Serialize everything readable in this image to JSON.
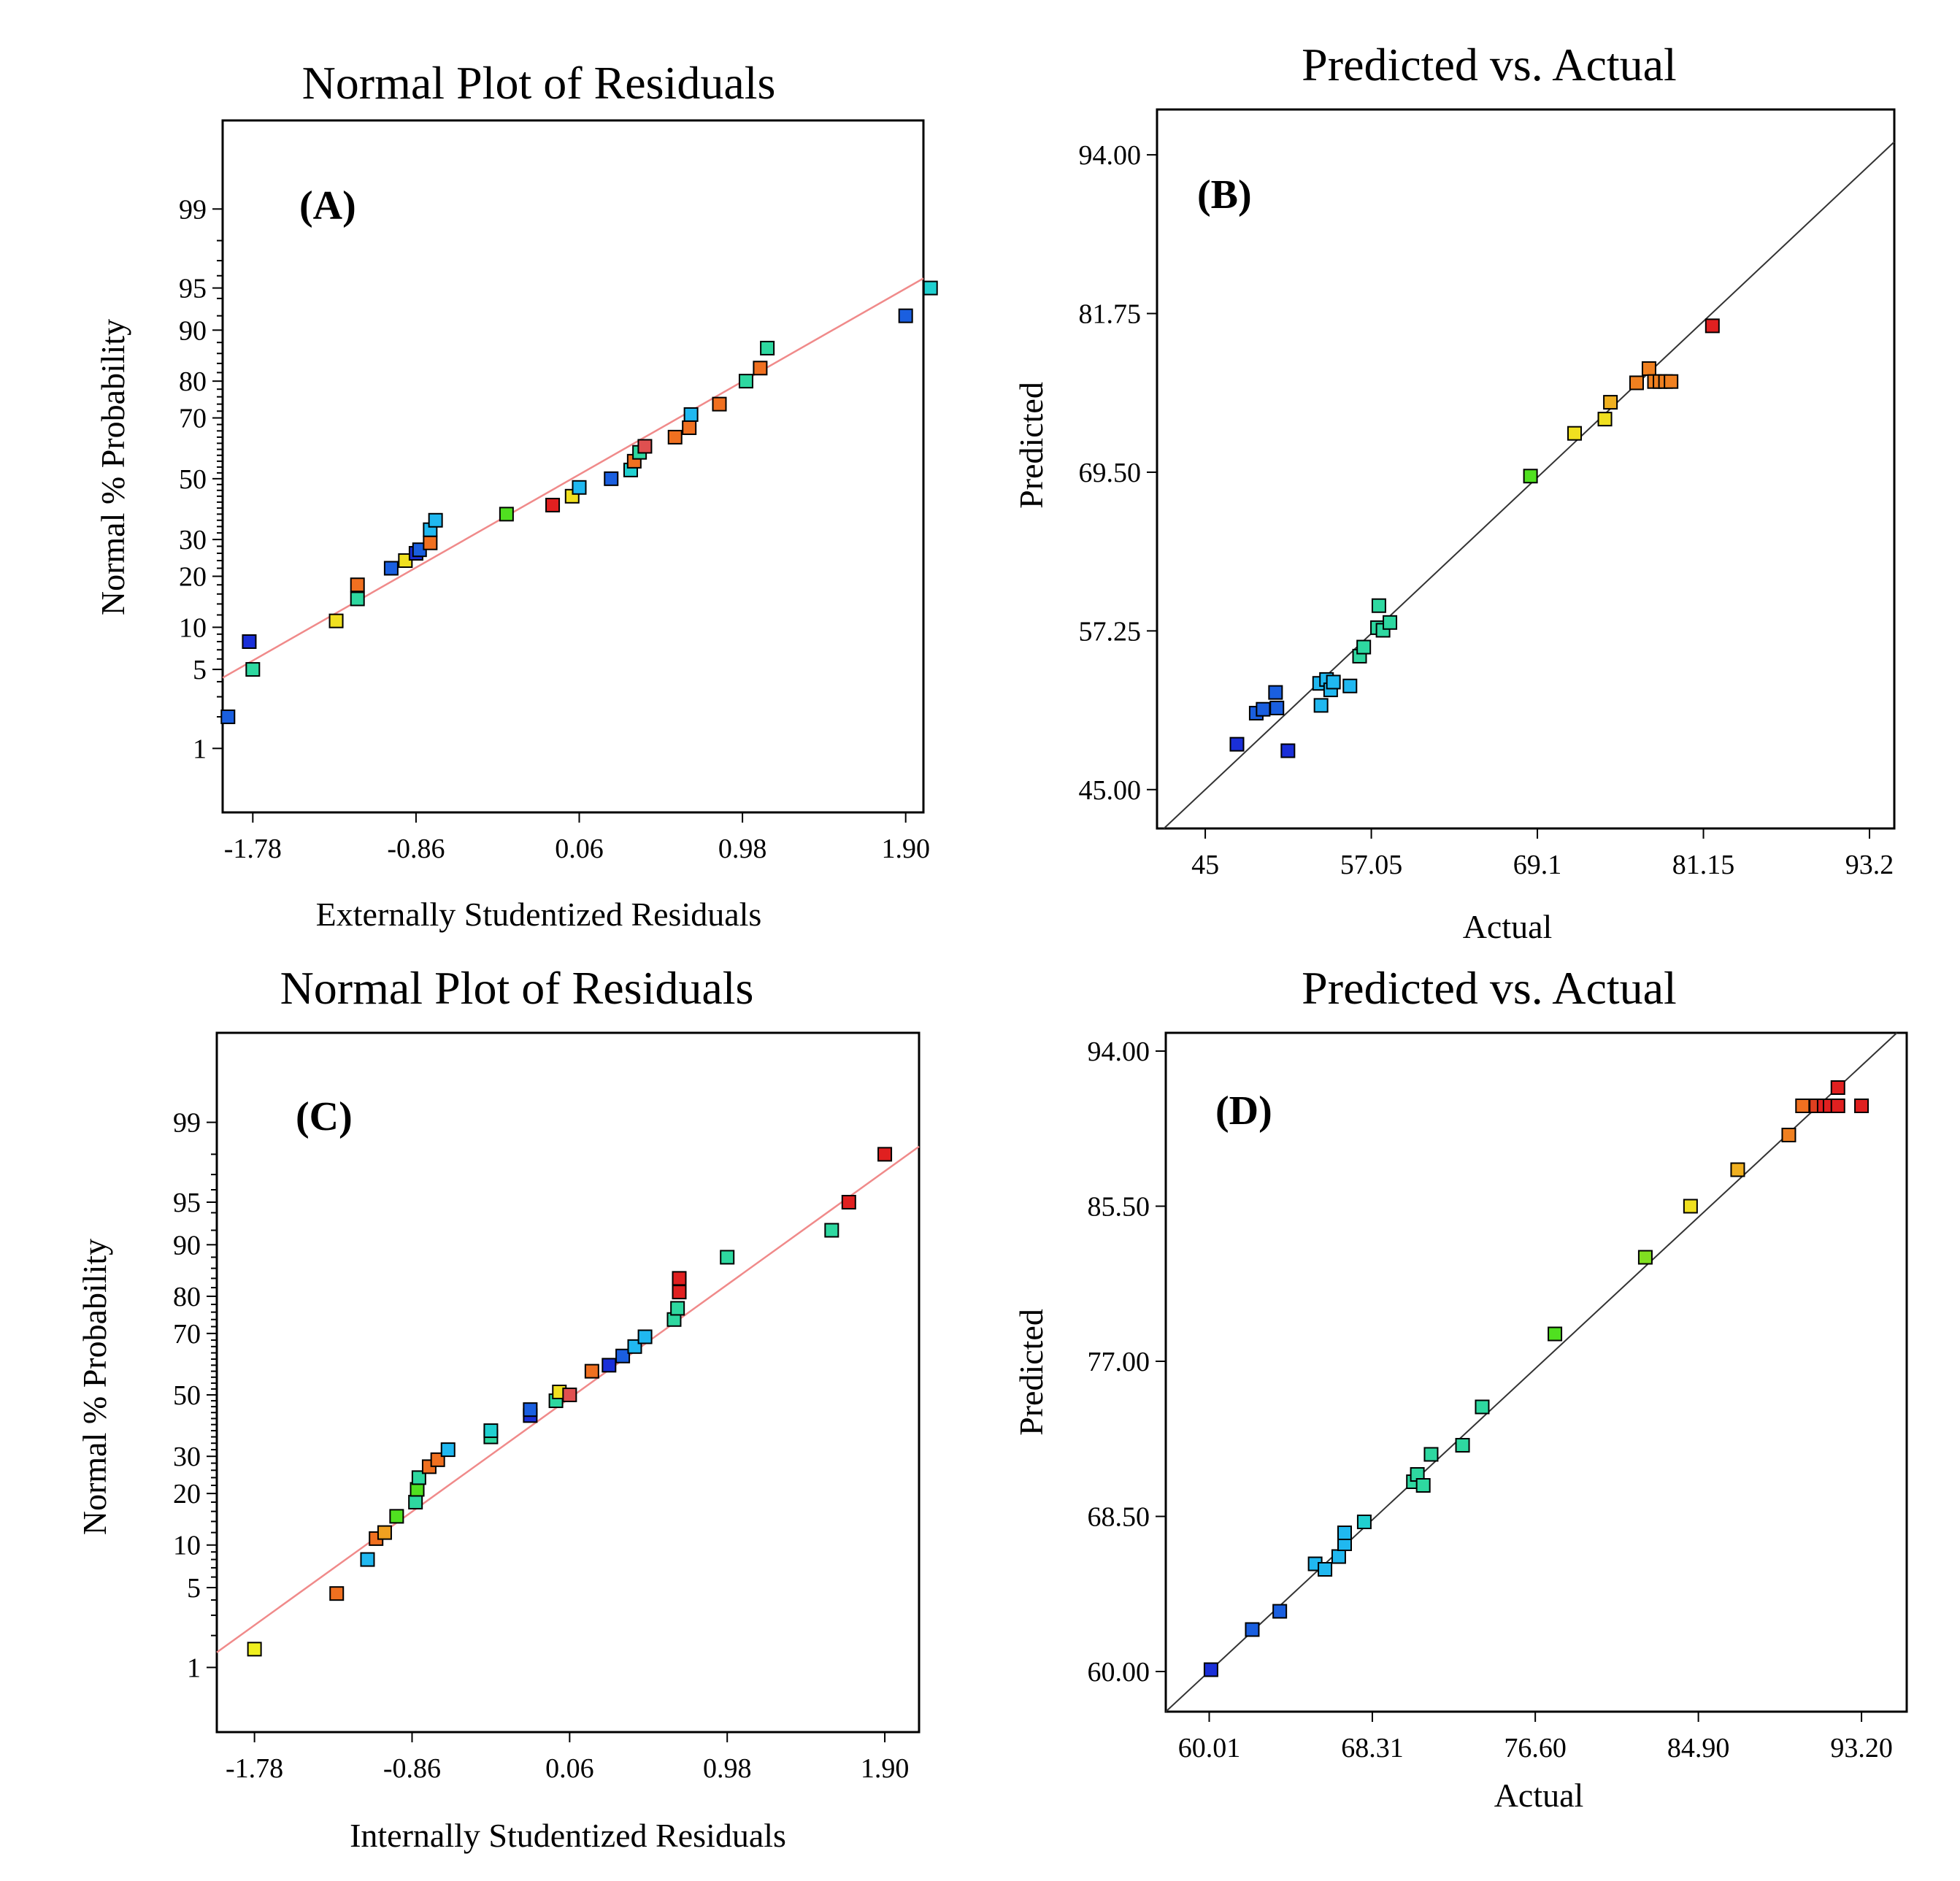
{
  "chart_data": [
    {
      "id": "A",
      "type": "scatter",
      "subtype": "normal-probability",
      "title": "Normal Plot of Residuals",
      "panel_label": "(A)",
      "xlabel": "Externally Studentized Residuals",
      "ylabel": "Normal % Probability",
      "xlim": [
        -1.95,
        2.0
      ],
      "ylim": [
        0.2,
        99.9
      ],
      "xticks": [
        "-1.78",
        "-0.86",
        "0.06",
        "0.98",
        "1.90"
      ],
      "yticks": [
        "1",
        "5",
        "10",
        "20",
        "30",
        "50",
        "70",
        "80",
        "90",
        "95",
        "99"
      ],
      "fit_line": {
        "x": [
          -1.95,
          2.0
        ],
        "y": [
          4.3,
          95.8
        ],
        "color": "#f08a8a"
      },
      "points": {
        "x": [
          -1.92,
          -1.78,
          -1.8,
          -1.31,
          -1.19,
          -1.19,
          -1.0,
          -0.92,
          -0.86,
          -0.84,
          -0.78,
          -0.78,
          -0.75,
          -0.35,
          -0.09,
          0.02,
          0.06,
          0.24,
          0.35,
          0.37,
          0.4,
          0.43,
          0.6,
          0.68,
          0.69,
          0.85,
          1.0,
          1.08,
          1.12,
          1.9,
          2.04
        ],
        "y": [
          2.0,
          5.0,
          8.0,
          11.0,
          15.0,
          18.0,
          22.0,
          24.0,
          26.0,
          27.0,
          29.0,
          33.0,
          36.0,
          38.0,
          41.0,
          44.0,
          47.0,
          50.0,
          53.0,
          56.0,
          59.0,
          61.0,
          64.0,
          67.0,
          71.0,
          74.0,
          80.0,
          83.0,
          87.0,
          92.0,
          95.0
        ],
        "colors": [
          "#1a5fe0",
          "#2ed8a0",
          "#1a2fd8",
          "#f0e020",
          "#2ed8a0",
          "#f07020",
          "#1a5fe0",
          "#f0e020",
          "#1a2fd8",
          "#1a5fe0",
          "#f07020",
          "#20b8f0",
          "#20b8f0",
          "#50e020",
          "#e02020",
          "#f0e020",
          "#20b8f0",
          "#1a5fe0",
          "#20d0d0",
          "#f07020",
          "#2ed8a0",
          "#e05050",
          "#f07020",
          "#f07020",
          "#20b8f0",
          "#f07020",
          "#2ed8a0",
          "#f07020",
          "#2ed8a0",
          "#1a5fe0",
          "#20d0d0"
        ]
      }
    },
    {
      "id": "B",
      "type": "scatter",
      "subtype": "predicted-vs-actual",
      "title": "Predicted vs. Actual",
      "panel_label": "(B)",
      "xlabel": "Actual",
      "ylabel": "Predicted",
      "xlim": [
        41.5,
        95.0
      ],
      "ylim": [
        42.0,
        97.5
      ],
      "xticks": [
        "45",
        "57.05",
        "69.1",
        "81.15",
        "93.2"
      ],
      "yticks": [
        "45.00",
        "57.25",
        "69.50",
        "81.75",
        "94.00"
      ],
      "diagonal": true,
      "points": {
        "x": [
          47.3,
          51.0,
          48.7,
          49.2,
          50.2,
          50.1,
          53.3,
          53.8,
          54.1,
          54.3,
          55.5,
          53.4,
          56.2,
          56.5,
          57.5,
          57.9,
          58.4,
          57.6,
          68.6,
          71.8,
          74.0,
          74.4,
          76.3,
          77.2,
          77.6,
          78.0,
          78.4,
          78.8,
          81.8
        ],
        "y": [
          48.5,
          48.0,
          50.9,
          51.2,
          51.3,
          52.5,
          53.2,
          53.5,
          52.7,
          53.3,
          53.0,
          51.5,
          55.3,
          56.0,
          57.5,
          57.3,
          57.9,
          59.2,
          69.2,
          72.5,
          73.6,
          74.9,
          76.4,
          77.5,
          76.5,
          76.5,
          76.5,
          76.5,
          80.8
        ],
        "colors": [
          "#1a2fd8",
          "#1a2fd8",
          "#1a5fe0",
          "#1a5fe0",
          "#1a5fe0",
          "#1a5fe0",
          "#20b8f0",
          "#20b8f0",
          "#20b8f0",
          "#20b8f0",
          "#20b8f0",
          "#20b8f0",
          "#2ed8a0",
          "#2ed8a0",
          "#2ed8a0",
          "#2ed8a0",
          "#2ed8a0",
          "#2ed8a0",
          "#50e020",
          "#f0e020",
          "#f0e020",
          "#f0b020",
          "#f08020",
          "#f08020",
          "#f08020",
          "#f08020",
          "#f08020",
          "#f08020",
          "#e02020"
        ]
      }
    },
    {
      "id": "C",
      "type": "scatter",
      "subtype": "normal-probability",
      "title": "Normal Plot of Residuals",
      "panel_label": "(C)",
      "xlabel": "Internally Studentized Residuals",
      "ylabel": "Normal % Probability",
      "xlim": [
        -2.0,
        2.1
      ],
      "ylim": [
        0.2,
        99.9
      ],
      "xticks": [
        "-1.78",
        "-0.86",
        "0.06",
        "0.98",
        "1.90"
      ],
      "yticks": [
        "1",
        "5",
        "10",
        "20",
        "30",
        "50",
        "70",
        "80",
        "90",
        "95",
        "99"
      ],
      "fit_line": {
        "x": [
          -2.0,
          2.1
        ],
        "y": [
          1.4,
          98.3
        ],
        "color": "#f08a8a"
      },
      "points": {
        "x": [
          -1.78,
          -1.3,
          -1.12,
          -1.07,
          -1.02,
          -0.95,
          -0.84,
          -0.83,
          -0.82,
          -0.76,
          -0.71,
          -0.65,
          -0.4,
          -0.4,
          -0.17,
          -0.17,
          -0.02,
          0.0,
          0.06,
          0.19,
          0.29,
          0.37,
          0.44,
          0.5,
          0.67,
          0.69,
          0.7,
          0.7,
          0.98,
          1.59,
          1.69,
          1.9
        ],
        "y": [
          1.5,
          4.5,
          8.0,
          11.0,
          12.0,
          15.0,
          18.0,
          21.0,
          24.0,
          27.0,
          29.0,
          32.0,
          36.0,
          38.0,
          43.0,
          45.0,
          48.0,
          51.0,
          50.0,
          58.0,
          60.0,
          63.0,
          66.0,
          69.0,
          74.0,
          77.0,
          81.0,
          84.0,
          88.0,
          92.0,
          95.0,
          98.0
        ],
        "colors": [
          "#f0f020",
          "#f07020",
          "#20b8f0",
          "#f07020",
          "#f0a020",
          "#50e020",
          "#2ed8a0",
          "#50e020",
          "#2ed8a0",
          "#f07020",
          "#f07020",
          "#20b8f0",
          "#2ed8a0",
          "#20d0d0",
          "#1a2fd8",
          "#1a5fe0",
          "#2ed8a0",
          "#f0e020",
          "#e05050",
          "#f07020",
          "#1a2fd8",
          "#1a5fe0",
          "#20b8f0",
          "#20b8f0",
          "#2ed8a0",
          "#2ed8a0",
          "#e02020",
          "#e02020",
          "#2ed8a0",
          "#2ed8a0",
          "#e02020",
          "#e02020"
        ]
      }
    },
    {
      "id": "D",
      "type": "scatter",
      "subtype": "predicted-vs-actual",
      "title": "Predicted vs. Actual",
      "panel_label": "(D)",
      "xlabel": "Actual",
      "ylabel": "Predicted",
      "xlim": [
        57.8,
        95.5
      ],
      "ylim": [
        57.8,
        95.0
      ],
      "xticks": [
        "60.01",
        "68.31",
        "76.60",
        "84.90",
        "93.20"
      ],
      "yticks": [
        "60.00",
        "68.50",
        "77.00",
        "85.50",
        "94.00"
      ],
      "diagonal": true,
      "points": {
        "x": [
          60.1,
          62.2,
          63.6,
          65.4,
          65.9,
          66.6,
          66.9,
          66.9,
          67.9,
          70.4,
          70.6,
          70.9,
          71.3,
          72.9,
          73.9,
          77.6,
          82.2,
          84.5,
          86.9,
          89.5,
          90.2,
          90.9,
          91.3,
          91.6,
          92.0,
          92.0,
          93.2
        ],
        "y": [
          60.1,
          62.3,
          63.3,
          65.9,
          65.6,
          66.3,
          67.0,
          67.6,
          68.2,
          70.4,
          70.8,
          70.2,
          71.9,
          72.4,
          74.5,
          78.5,
          82.7,
          85.5,
          87.5,
          89.4,
          91.0,
          91.0,
          91.0,
          91.0,
          91.0,
          92.0,
          91.0
        ],
        "colors": [
          "#1a2fd8",
          "#1a5fe0",
          "#1a5fe0",
          "#20b8f0",
          "#20b8f0",
          "#20b8f0",
          "#20b8f0",
          "#20b8f0",
          "#20d0d0",
          "#2ed8a0",
          "#2ed8a0",
          "#2ed8a0",
          "#2ed8a0",
          "#2ed8a0",
          "#2ed8a0",
          "#50e020",
          "#80e020",
          "#f0e020",
          "#f0b020",
          "#f08020",
          "#f07020",
          "#e04020",
          "#e02020",
          "#e02020",
          "#e02020",
          "#e02020",
          "#e02020"
        ]
      }
    }
  ]
}
